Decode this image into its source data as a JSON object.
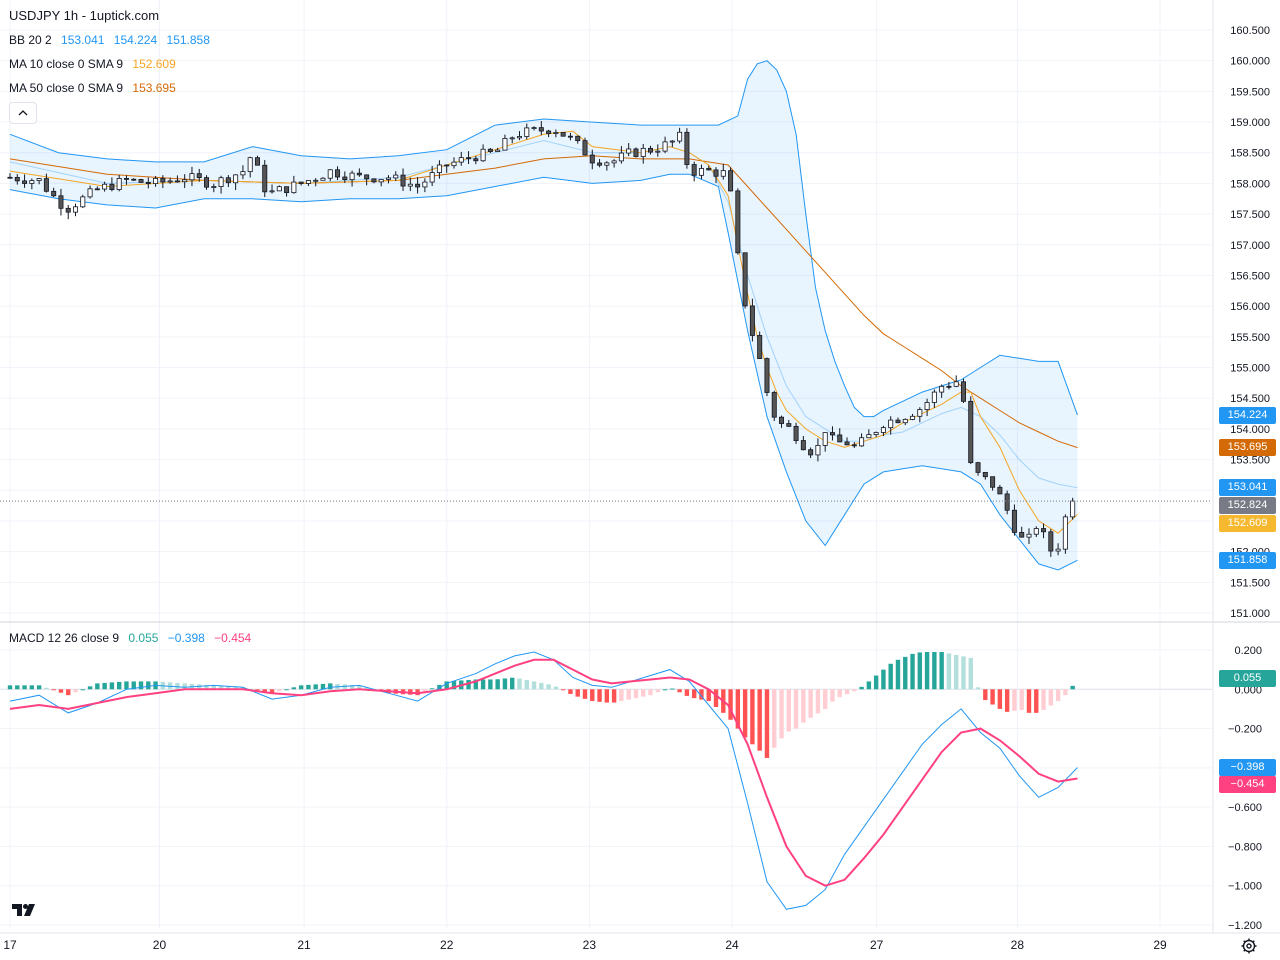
{
  "header": {
    "title": "USDJPY 1h - 1uptick.com",
    "bb": {
      "label": "BB 20 2",
      "basis": "153.041",
      "upper": "154.224",
      "lower": "151.858"
    },
    "ma10": {
      "label": "MA 10 close 0 SMA 9",
      "value": "152.609"
    },
    "ma50": {
      "label": "MA 50 close 0 SMA 9",
      "value": "153.695"
    },
    "macd": {
      "label": "MACD 12 26 close 9",
      "hist": "0.055",
      "macd": "−0.398",
      "signal": "−0.454"
    }
  },
  "colors": {
    "up": "#ffffff",
    "down": "#555555",
    "wick": "#131722",
    "bb": "#2196f3",
    "bb_fill": "rgba(33,150,243,0.10)",
    "ma10": "#f5a623",
    "ma50": "#d46a06",
    "macd_line": "#2196f3",
    "signal_line": "#ff4081",
    "hist_up_strong": "#26a69a",
    "hist_up_weak": "#b2dfdb",
    "hist_down_strong": "#ff5252",
    "hist_down_weak": "#ffcdd2",
    "grid": "#f0f3fa",
    "axis_text": "#131722"
  },
  "price_tags": [
    {
      "name": "tag-bb-upper",
      "text": "154.224",
      "value": 154.224,
      "color": "#2196f3"
    },
    {
      "name": "tag-ma50",
      "text": "153.695",
      "value": 153.695,
      "color": "#d46a06"
    },
    {
      "name": "tag-bb-basis",
      "text": "153.041",
      "value": 153.041,
      "color": "#2196f3"
    },
    {
      "name": "tag-last-price",
      "text": "152.824",
      "value": 152.824,
      "color": "#787b86"
    },
    {
      "name": "tag-ma10",
      "text": "152.609",
      "value": 152.609,
      "color": "#f5b82e"
    },
    {
      "name": "tag-bb-lower",
      "text": "151.858",
      "value": 151.858,
      "color": "#2196f3"
    }
  ],
  "macd_tags": [
    {
      "name": "tag-macd-hist",
      "text": "0.055",
      "value": 0.055,
      "color": "#26a69a"
    },
    {
      "name": "tag-macd-line",
      "text": "−0.398",
      "value": -0.398,
      "color": "#2196f3"
    },
    {
      "name": "tag-macd-signal",
      "text": "−0.454",
      "value": -0.454,
      "color": "#ff4081"
    }
  ],
  "chart_data": [
    {
      "type": "candlestick",
      "title": "USDJPY 1h - 1uptick.com",
      "ylim": [
        151.0,
        160.5
      ],
      "xlim": [
        0,
        120
      ],
      "y_ticks": [
        "151.000",
        "151.500",
        "152.000",
        "152.500",
        "153.000",
        "153.500",
        "154.000",
        "154.500",
        "155.000",
        "155.500",
        "156.000",
        "156.500",
        "157.000",
        "157.500",
        "158.000",
        "158.500",
        "159.000",
        "159.500",
        "160.000",
        "160.500"
      ],
      "x_tick_labels": [
        {
          "label": "17",
          "x": 0
        },
        {
          "label": "20",
          "x": 15.4
        },
        {
          "label": "21",
          "x": 30.3
        },
        {
          "label": "22",
          "x": 45.0
        },
        {
          "label": "23",
          "x": 59.7
        },
        {
          "label": "24",
          "x": 74.4
        },
        {
          "label": "27",
          "x": 89.3
        },
        {
          "label": "28",
          "x": 103.8
        },
        {
          "label": "29",
          "x": 118.5
        }
      ],
      "last_price": 152.824,
      "grid": true,
      "overlays": [
        "BB 20 2",
        "MA 10 close 0 SMA 9",
        "MA 50 close 0 SMA 9"
      ],
      "ohlc_anchor": {
        "x": [
          0,
          3,
          5,
          6,
          9,
          12,
          15,
          18,
          21,
          24,
          25,
          26,
          27,
          30,
          33,
          36,
          39,
          42,
          45,
          48,
          50,
          52,
          54,
          56,
          58,
          60,
          62,
          64,
          66,
          68,
          69,
          70,
          72,
          74,
          75,
          76,
          77,
          78,
          79,
          80,
          81,
          82,
          83,
          84,
          85,
          86,
          87,
          88,
          89,
          90,
          92,
          94,
          96,
          98,
          99,
          100,
          101,
          102,
          103,
          104,
          105,
          106,
          107,
          108,
          109,
          110
        ],
        "close": [
          158.1,
          158.05,
          157.7,
          157.6,
          157.9,
          158.05,
          158.0,
          158.1,
          158.0,
          158.2,
          158.5,
          157.95,
          157.85,
          158.0,
          158.2,
          158.1,
          158.1,
          157.95,
          158.3,
          158.45,
          158.5,
          158.8,
          158.85,
          158.9,
          158.7,
          158.4,
          158.35,
          158.5,
          158.55,
          158.65,
          158.75,
          158.2,
          158.2,
          158.15,
          156.8,
          155.8,
          155.3,
          154.6,
          154.1,
          154.05,
          153.9,
          153.7,
          153.6,
          154.0,
          153.75,
          153.8,
          153.7,
          153.8,
          153.95,
          154.1,
          154.2,
          154.35,
          154.7,
          154.8,
          153.4,
          153.2,
          153.15,
          152.9,
          152.6,
          152.2,
          152.2,
          152.5,
          152.0,
          152.1,
          152.7,
          152.824
        ]
      },
      "bb_upper_anchor": {
        "x": [
          0,
          5,
          10,
          15,
          20,
          25,
          30,
          35,
          40,
          45,
          50,
          55,
          60,
          65,
          68,
          70,
          73,
          75,
          76,
          77,
          78,
          79,
          80,
          81,
          82,
          83,
          84,
          85,
          86,
          87,
          88,
          89,
          90,
          92,
          94,
          96,
          98,
          100,
          102,
          104,
          106,
          108,
          110
        ],
        "value": [
          158.8,
          158.5,
          158.4,
          158.35,
          158.35,
          158.6,
          158.45,
          158.4,
          158.45,
          158.55,
          158.95,
          159.05,
          159.0,
          158.95,
          158.95,
          158.95,
          158.95,
          159.1,
          159.7,
          159.95,
          160.0,
          159.85,
          159.5,
          158.8,
          157.5,
          156.3,
          155.6,
          155.1,
          154.7,
          154.35,
          154.2,
          154.2,
          154.3,
          154.45,
          154.6,
          154.7,
          154.8,
          155.0,
          155.2,
          155.15,
          155.1,
          155.1,
          154.224
        ]
      },
      "bb_lower_anchor": {
        "x": [
          0,
          5,
          10,
          15,
          20,
          25,
          30,
          35,
          40,
          45,
          50,
          55,
          60,
          65,
          68,
          70,
          73,
          74,
          76,
          78,
          80,
          82,
          84,
          86,
          88,
          90,
          92,
          94,
          96,
          98,
          100,
          102,
          104,
          106,
          108,
          110
        ],
        "value": [
          157.9,
          157.75,
          157.65,
          157.6,
          157.75,
          157.75,
          157.7,
          157.75,
          157.75,
          157.8,
          157.95,
          158.1,
          158.0,
          158.05,
          158.15,
          158.15,
          157.95,
          157.2,
          155.6,
          154.2,
          153.3,
          152.5,
          152.1,
          152.6,
          153.1,
          153.3,
          153.35,
          153.4,
          153.35,
          153.3,
          153.1,
          152.6,
          152.2,
          151.8,
          151.7,
          151.858
        ]
      },
      "bb_basis_anchor": {
        "x": [
          0,
          10,
          20,
          30,
          40,
          45,
          50,
          55,
          60,
          65,
          68,
          70,
          72,
          74,
          76,
          78,
          80,
          82,
          84,
          86,
          88,
          90,
          92,
          94,
          96,
          98,
          100,
          102,
          104,
          106,
          108,
          110
        ],
        "value": [
          158.35,
          158.0,
          158.05,
          158.0,
          158.1,
          158.3,
          158.5,
          158.7,
          158.5,
          158.5,
          158.6,
          158.5,
          158.3,
          157.7,
          156.5,
          155.5,
          154.7,
          154.2,
          154.0,
          153.8,
          153.8,
          153.9,
          153.95,
          154.1,
          154.25,
          154.35,
          154.2,
          153.9,
          153.5,
          153.2,
          153.1,
          153.041
        ]
      },
      "ma10_anchor": {
        "x": [
          0,
          10,
          20,
          30,
          40,
          45,
          50,
          55,
          58,
          60,
          65,
          68,
          70,
          72,
          74,
          75,
          76,
          77,
          78,
          79,
          80,
          82,
          84,
          86,
          88,
          90,
          92,
          94,
          96,
          98,
          99,
          100,
          102,
          104,
          106,
          108,
          110
        ],
        "value": [
          158.2,
          157.95,
          158.05,
          158.0,
          158.05,
          158.3,
          158.55,
          158.8,
          158.85,
          158.6,
          158.5,
          158.6,
          158.5,
          158.3,
          157.8,
          157.0,
          156.2,
          155.5,
          155.0,
          154.6,
          154.3,
          154.0,
          153.8,
          153.7,
          153.8,
          153.9,
          154.1,
          154.25,
          154.4,
          154.6,
          154.6,
          154.2,
          153.7,
          153.0,
          152.5,
          152.3,
          152.609
        ]
      },
      "ma50_anchor": {
        "x": [
          0,
          10,
          20,
          30,
          40,
          45,
          50,
          55,
          60,
          65,
          70,
          74,
          76,
          78,
          80,
          82,
          84,
          86,
          88,
          90,
          92,
          94,
          96,
          98,
          100,
          102,
          104,
          106,
          108,
          110
        ],
        "value": [
          158.4,
          158.15,
          158.05,
          158.0,
          158.05,
          158.15,
          158.25,
          158.4,
          158.45,
          158.4,
          158.4,
          158.3,
          157.95,
          157.6,
          157.25,
          156.9,
          156.55,
          156.2,
          155.85,
          155.55,
          155.35,
          155.15,
          154.95,
          154.7,
          154.5,
          154.3,
          154.1,
          153.95,
          153.8,
          153.695
        ]
      }
    },
    {
      "type": "bar",
      "title": "MACD 12 26 close 9",
      "ylim": [
        -1.2,
        0.2
      ],
      "y_ticks": [
        "0.200",
        "0.000",
        "−0.200",
        "−0.400",
        "−0.600",
        "−0.800",
        "−1.000",
        "−1.200"
      ],
      "series": [
        {
          "name": "0.055",
          "type": "histogram",
          "x": [
            0,
            3,
            6,
            9,
            12,
            15,
            18,
            21,
            24,
            27,
            30,
            33,
            36,
            39,
            42,
            45,
            48,
            50,
            52,
            54,
            56,
            58,
            60,
            62,
            64,
            66,
            68,
            70,
            72,
            74,
            75,
            76,
            77,
            78,
            79,
            80,
            81,
            82,
            83,
            84,
            85,
            86,
            87,
            88,
            89,
            90,
            91,
            92,
            93,
            94,
            95,
            96,
            97,
            98,
            99,
            100,
            101,
            102,
            103,
            104,
            105,
            106,
            107,
            108,
            109,
            110
          ],
          "values": [
            0.02,
            0.02,
            -0.03,
            0.03,
            0.04,
            0.04,
            0.03,
            0.02,
            0.01,
            -0.02,
            0.02,
            0.03,
            0.02,
            -0.02,
            -0.03,
            0.04,
            0.05,
            0.05,
            0.06,
            0.04,
            0.02,
            -0.03,
            -0.06,
            -0.07,
            -0.05,
            -0.03,
            0.01,
            -0.04,
            -0.06,
            -0.14,
            -0.2,
            -0.26,
            -0.3,
            -0.35,
            -0.28,
            -0.22,
            -0.2,
            -0.16,
            -0.13,
            -0.1,
            -0.05,
            -0.03,
            -0.01,
            0.02,
            0.06,
            0.1,
            0.14,
            0.16,
            0.18,
            0.19,
            0.19,
            0.19,
            0.18,
            0.17,
            0.16,
            -0.04,
            -0.07,
            -0.1,
            -0.12,
            -0.1,
            -0.12,
            -0.12,
            -0.09,
            -0.06,
            -0.02,
            0.055
          ]
        },
        {
          "name": "−0.398",
          "type": "line",
          "x": [
            0,
            3,
            6,
            9,
            12,
            15,
            18,
            21,
            24,
            27,
            30,
            33,
            36,
            39,
            42,
            45,
            48,
            50,
            52,
            54,
            56,
            58,
            60,
            62,
            64,
            66,
            68,
            70,
            72,
            74,
            76,
            78,
            80,
            82,
            84,
            86,
            88,
            90,
            92,
            94,
            96,
            98,
            100,
            102,
            104,
            106,
            108,
            110
          ],
          "values": [
            -0.06,
            -0.03,
            -0.12,
            -0.07,
            0.0,
            0.02,
            0.01,
            0.02,
            0.01,
            -0.05,
            -0.03,
            0.01,
            0.02,
            -0.02,
            -0.06,
            0.03,
            0.08,
            0.13,
            0.17,
            0.19,
            0.15,
            0.06,
            0.02,
            0.01,
            0.04,
            0.07,
            0.1,
            0.04,
            -0.08,
            -0.2,
            -0.58,
            -0.98,
            -1.12,
            -1.1,
            -1.02,
            -0.84,
            -0.7,
            -0.56,
            -0.42,
            -0.28,
            -0.18,
            -0.1,
            -0.22,
            -0.3,
            -0.44,
            -0.55,
            -0.5,
            -0.398
          ]
        },
        {
          "name": "−0.454",
          "type": "line",
          "x": [
            0,
            3,
            6,
            9,
            12,
            15,
            18,
            21,
            24,
            27,
            30,
            33,
            36,
            39,
            42,
            45,
            48,
            50,
            52,
            54,
            56,
            58,
            60,
            62,
            64,
            66,
            68,
            70,
            72,
            74,
            76,
            78,
            80,
            82,
            84,
            86,
            88,
            90,
            92,
            94,
            96,
            98,
            100,
            102,
            104,
            106,
            108,
            110
          ],
          "values": [
            -0.1,
            -0.08,
            -0.1,
            -0.07,
            -0.04,
            -0.02,
            0.0,
            0.0,
            0.0,
            -0.02,
            -0.03,
            -0.01,
            0.0,
            -0.01,
            -0.02,
            0.0,
            0.04,
            0.08,
            0.12,
            0.15,
            0.15,
            0.1,
            0.05,
            0.03,
            0.04,
            0.05,
            0.06,
            0.05,
            0.0,
            -0.08,
            -0.28,
            -0.55,
            -0.8,
            -0.95,
            -1.0,
            -0.97,
            -0.86,
            -0.74,
            -0.6,
            -0.46,
            -0.32,
            -0.22,
            -0.2,
            -0.26,
            -0.34,
            -0.43,
            -0.47,
            -0.454
          ]
        }
      ]
    }
  ]
}
